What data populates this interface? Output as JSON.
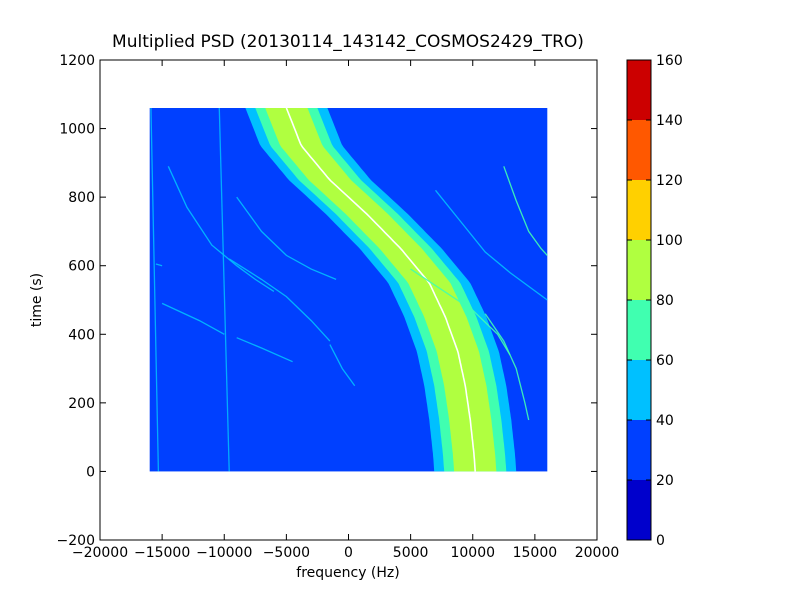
{
  "chart_data": {
    "type": "heatmap",
    "title": "Multiplied PSD (20130114_143142_COSMOS2429_TRO)",
    "xlabel": "frequency (Hz)",
    "ylabel": "time (s)",
    "xlim": [
      -20000,
      20000
    ],
    "ylim": [
      -200,
      1200
    ],
    "xticks": [
      -20000,
      -15000,
      -10000,
      -5000,
      0,
      5000,
      10000,
      15000,
      20000
    ],
    "xtick_labels": [
      "−20000",
      "−15000",
      "−10000",
      "−5000",
      "0",
      "5000",
      "10000",
      "15000",
      "20000"
    ],
    "yticks": [
      -200,
      0,
      200,
      400,
      600,
      800,
      1000,
      1200
    ],
    "ytick_labels": [
      "−200",
      "0",
      "200",
      "400",
      "600",
      "800",
      "1000",
      "1200"
    ],
    "data_extent": {
      "x": [
        -16000,
        16000
      ],
      "y": [
        0,
        1060
      ]
    },
    "background_level": 30,
    "colorbar": {
      "min": 0,
      "max": 160,
      "ticks": [
        0,
        20,
        40,
        60,
        80,
        100,
        120,
        140,
        160
      ],
      "tick_labels": [
        "0",
        "20",
        "40",
        "60",
        "80",
        "100",
        "120",
        "140",
        "160"
      ],
      "bins": [
        {
          "from": 0,
          "to": 20,
          "color": "#0000cc"
        },
        {
          "from": 20,
          "to": 40,
          "color": "#0040ff"
        },
        {
          "from": 40,
          "to": 60,
          "color": "#00c0ff"
        },
        {
          "from": 60,
          "to": 80,
          "color": "#40ffb0"
        },
        {
          "from": 80,
          "to": 100,
          "color": "#b0ff40"
        },
        {
          "from": 100,
          "to": 120,
          "color": "#ffd000"
        },
        {
          "from": 120,
          "to": 140,
          "color": "#ff5800"
        },
        {
          "from": 140,
          "to": 160,
          "color": "#cc0000"
        }
      ]
    },
    "main_signal": {
      "points": [
        {
          "t": 1060,
          "f": -5000
        },
        {
          "t": 950,
          "f": -3800
        },
        {
          "t": 850,
          "f": -1500
        },
        {
          "t": 750,
          "f": 1500
        },
        {
          "t": 650,
          "f": 4200
        },
        {
          "t": 550,
          "f": 6500
        },
        {
          "t": 450,
          "f": 7800
        },
        {
          "t": 350,
          "f": 8800
        },
        {
          "t": 250,
          "f": 9400
        },
        {
          "t": 150,
          "f": 9800
        },
        {
          "t": 50,
          "f": 10100
        },
        {
          "t": 0,
          "f": 10200
        }
      ],
      "bands": [
        {
          "half_width_hz": 3300,
          "level": 50
        },
        {
          "half_width_hz": 2500,
          "level": 70
        },
        {
          "half_width_hz": 1700,
          "level": 90
        }
      ],
      "ridge_color": "#ffffff"
    },
    "vertical_lines": [
      {
        "f_top": -15900,
        "f_bottom": -15300,
        "level": 50
      },
      {
        "f_top": -10400,
        "f_bottom": -9600,
        "level": 50
      }
    ],
    "faint_curves": [
      {
        "level": 50,
        "points": [
          {
            "f": -14500,
            "t": 890
          },
          {
            "f": -13000,
            "t": 770
          },
          {
            "f": -11000,
            "t": 660
          },
          {
            "f": -9000,
            "t": 600
          },
          {
            "f": -7500,
            "t": 560
          },
          {
            "f": -6000,
            "t": 525
          }
        ]
      },
      {
        "level": 50,
        "points": [
          {
            "f": -9600,
            "t": 620
          },
          {
            "f": -7000,
            "t": 560
          },
          {
            "f": -5000,
            "t": 510
          },
          {
            "f": -3000,
            "t": 440
          },
          {
            "f": -1500,
            "t": 380
          }
        ]
      },
      {
        "level": 50,
        "points": [
          {
            "f": -15000,
            "t": 490
          },
          {
            "f": -12000,
            "t": 440
          },
          {
            "f": -10000,
            "t": 400
          }
        ]
      },
      {
        "level": 50,
        "points": [
          {
            "f": -9000,
            "t": 390
          },
          {
            "f": -7000,
            "t": 360
          },
          {
            "f": -4500,
            "t": 320
          }
        ]
      },
      {
        "level": 50,
        "points": [
          {
            "f": -1500,
            "t": 370
          },
          {
            "f": -500,
            "t": 300
          },
          {
            "f": 500,
            "t": 250
          }
        ]
      },
      {
        "level": 50,
        "points": [
          {
            "f": -9000,
            "t": 800
          },
          {
            "f": -7000,
            "t": 700
          },
          {
            "f": -5000,
            "t": 630
          },
          {
            "f": -3000,
            "t": 590
          },
          {
            "f": -1000,
            "t": 560
          }
        ]
      },
      {
        "level": 60,
        "points": [
          {
            "f": 5000,
            "t": 590
          },
          {
            "f": 7500,
            "t": 530
          },
          {
            "f": 10000,
            "t": 470
          },
          {
            "f": 12000,
            "t": 400
          },
          {
            "f": 13000,
            "t": 340
          }
        ]
      },
      {
        "level": 60,
        "points": [
          {
            "f": 11000,
            "t": 460
          },
          {
            "f": 12500,
            "t": 380
          },
          {
            "f": 13500,
            "t": 300
          },
          {
            "f": 14200,
            "t": 200
          },
          {
            "f": 14500,
            "t": 150
          }
        ]
      },
      {
        "level": 50,
        "points": [
          {
            "f": 7000,
            "t": 820
          },
          {
            "f": 9000,
            "t": 730
          },
          {
            "f": 11000,
            "t": 640
          },
          {
            "f": 13000,
            "t": 580
          },
          {
            "f": 16000,
            "t": 500
          }
        ]
      },
      {
        "level": 60,
        "points": [
          {
            "f": 12500,
            "t": 890
          },
          {
            "f": 13500,
            "t": 790
          },
          {
            "f": 14500,
            "t": 700
          },
          {
            "f": 15500,
            "t": 650
          },
          {
            "f": 16000,
            "t": 630
          }
        ]
      },
      {
        "level": 50,
        "points": [
          {
            "f": -15500,
            "t": 605
          },
          {
            "f": -15000,
            "t": 600
          }
        ]
      }
    ]
  }
}
